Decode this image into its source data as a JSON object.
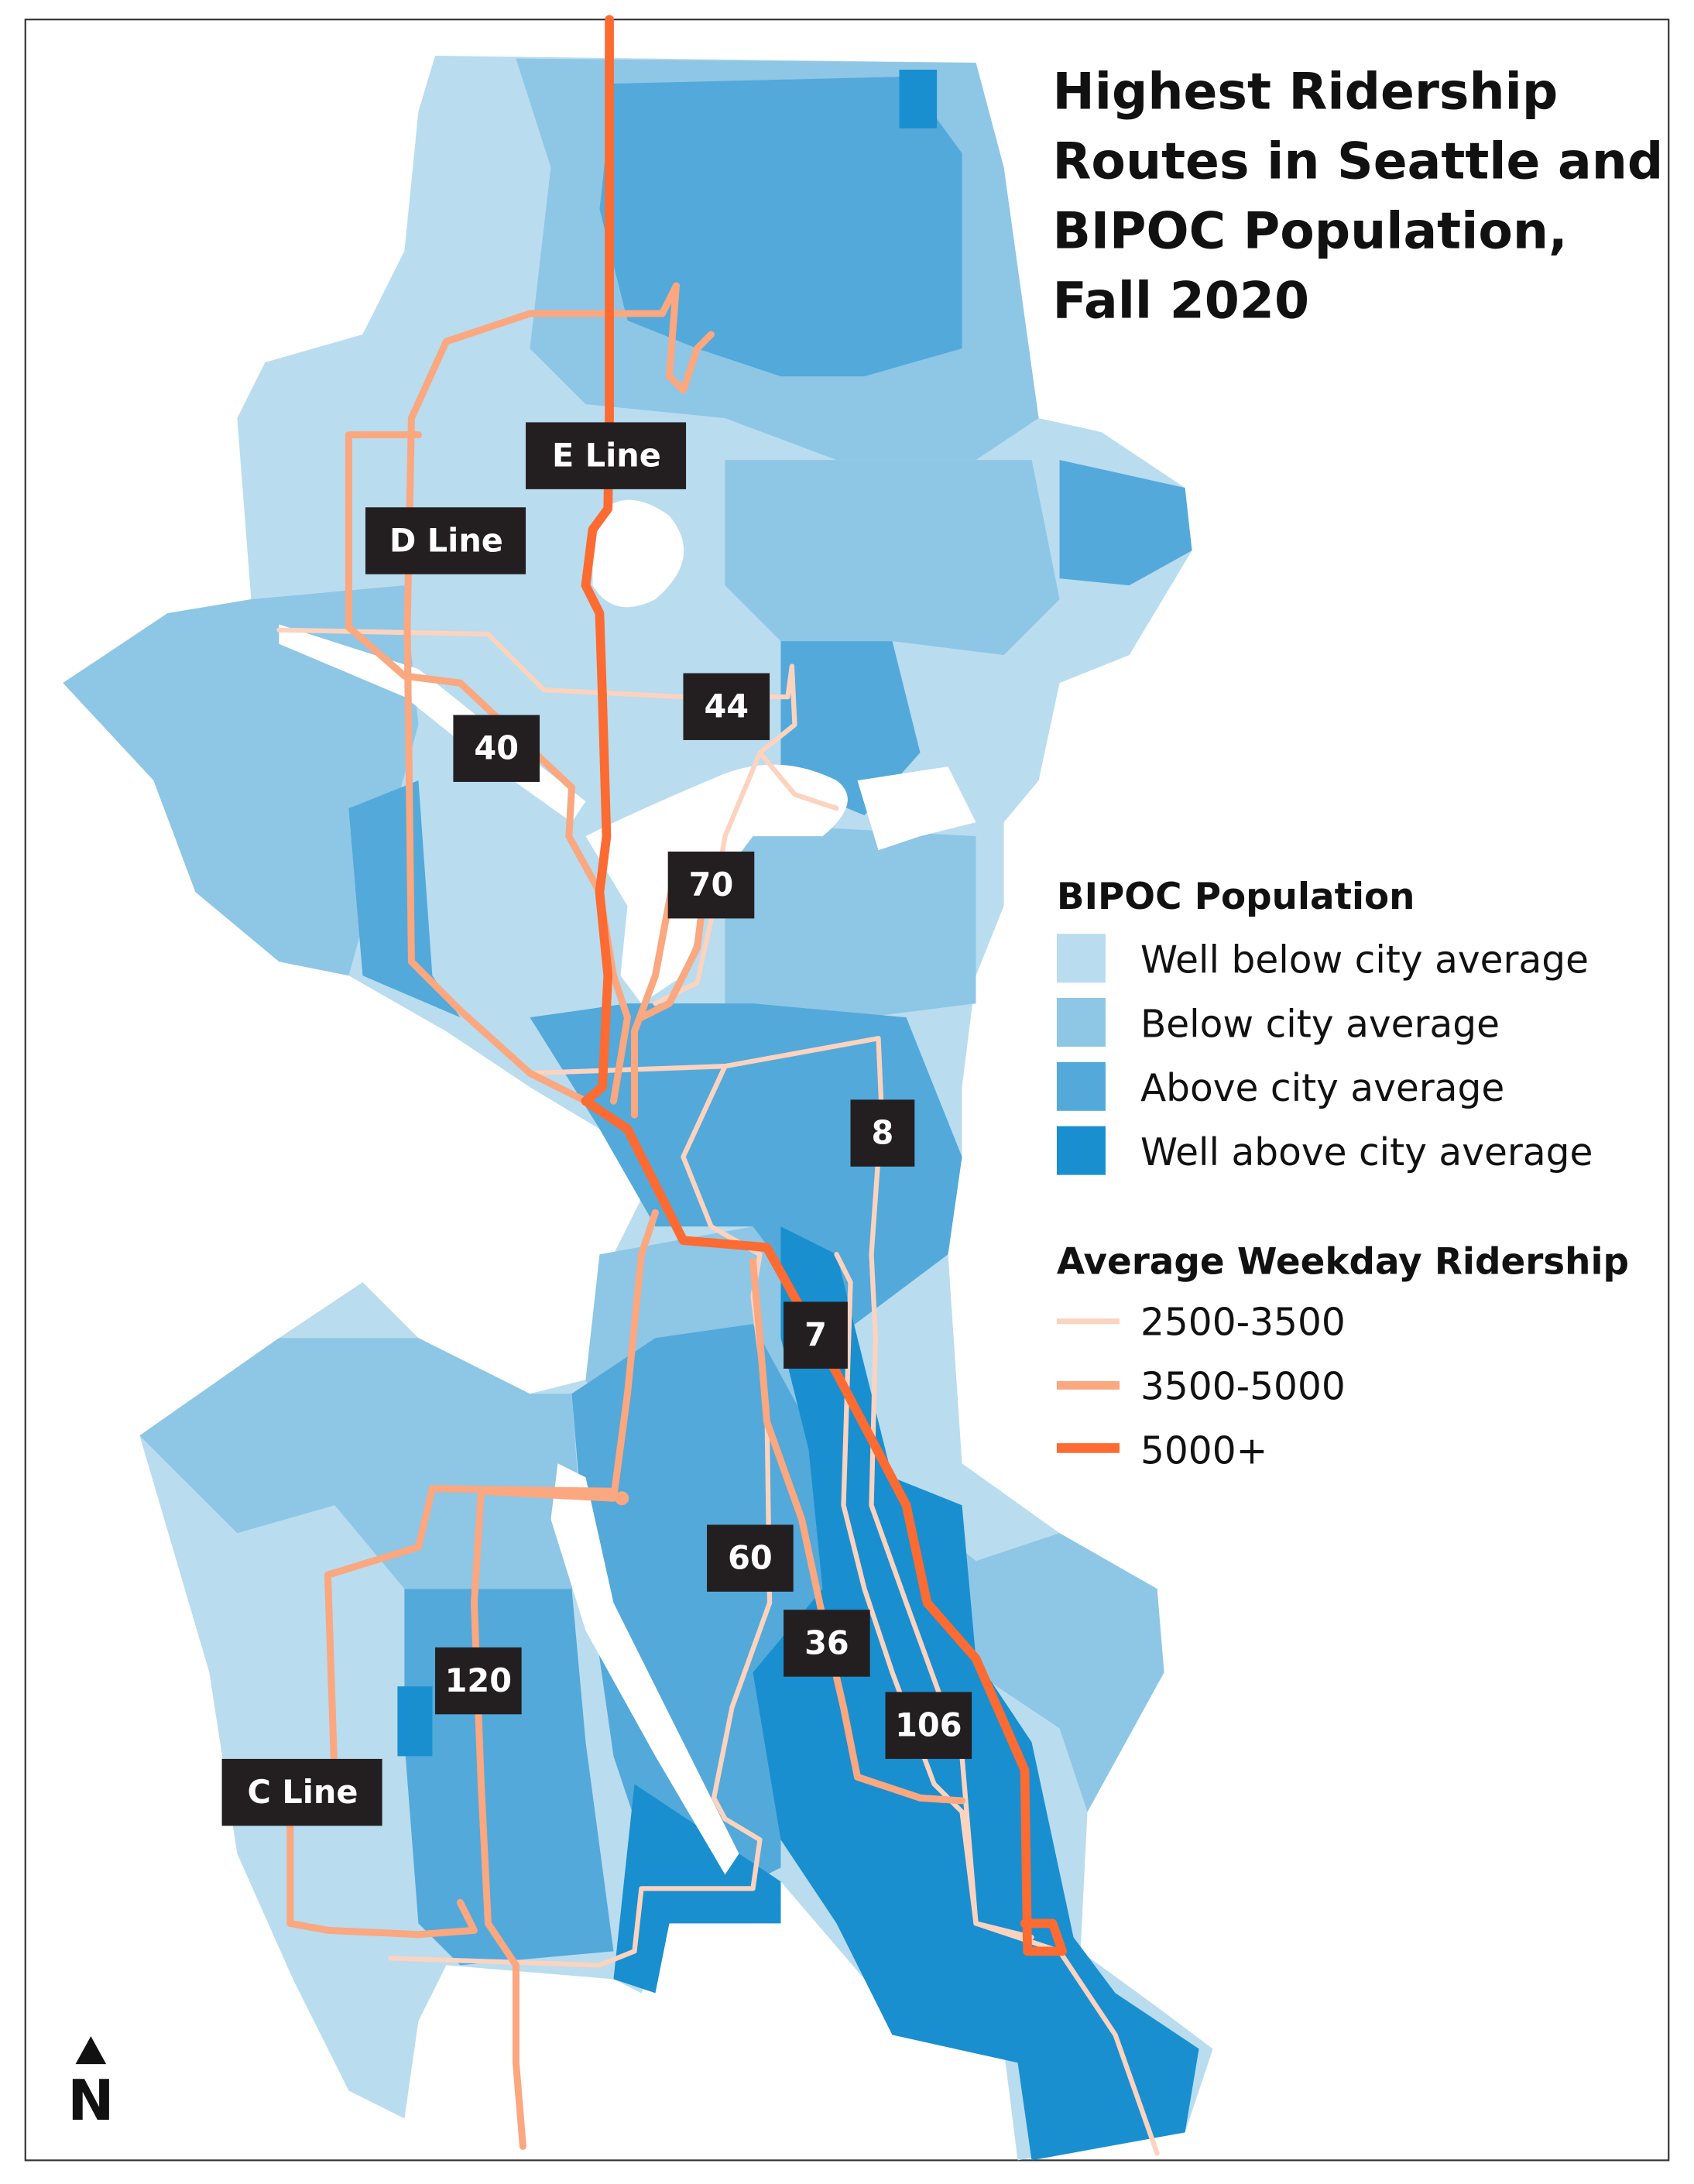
{
  "title": {
    "lines": [
      "Highest Ridership",
      "Routes in Seattle and",
      "BIPOC Population,",
      "Fall 2020"
    ]
  },
  "legend": {
    "population": {
      "heading": "BIPOC Population",
      "items": [
        {
          "label": "Well below city average",
          "color": "#b9dcef"
        },
        {
          "label": "Below city average",
          "color": "#8ec6e6"
        },
        {
          "label": "Above city average",
          "color": "#53a9da"
        },
        {
          "label": "Well above city average",
          "color": "#198fd0"
        }
      ]
    },
    "ridership": {
      "heading": "Average Weekday Ridership",
      "items": [
        {
          "label": "2500-3500",
          "color": "#fcd3bf"
        },
        {
          "label": "3500-5000",
          "color": "#fba77f"
        },
        {
          "label": "5000+",
          "color": "#fc6b31"
        }
      ]
    }
  },
  "routes": [
    {
      "label": "E Line",
      "tier": "5000+"
    },
    {
      "label": "D Line",
      "tier": "3500-5000"
    },
    {
      "label": "40",
      "tier": "3500-5000"
    },
    {
      "label": "44",
      "tier": "2500-3500"
    },
    {
      "label": "70",
      "tier": "3500-5000"
    },
    {
      "label": "8",
      "tier": "2500-3500"
    },
    {
      "label": "7",
      "tier": "5000+"
    },
    {
      "label": "60",
      "tier": "2500-3500"
    },
    {
      "label": "36",
      "tier": "3500-5000"
    },
    {
      "label": "106",
      "tier": "2500-3500"
    },
    {
      "label": "120",
      "tier": "3500-5000"
    },
    {
      "label": "C Line",
      "tier": "3500-5000"
    }
  ],
  "north_arrow": {
    "label": "N"
  }
}
